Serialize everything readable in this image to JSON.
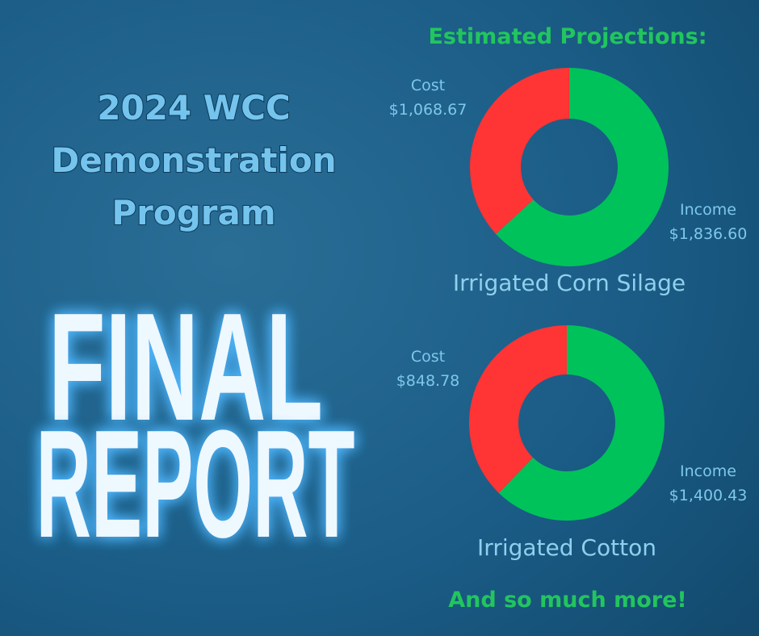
{
  "program_lines": [
    "2024 WCC",
    "Demonstration",
    "Program"
  ],
  "report_lines": [
    "FINAL",
    "REPORT"
  ],
  "heading": "Estimated Projections:",
  "footer": "And so much more!",
  "chart_data": [
    {
      "type": "pie",
      "donut": true,
      "title": "Irrigated Corn Silage",
      "categories": [
        "Cost",
        "Income"
      ],
      "values": [
        1068.67,
        1836.6
      ],
      "value_labels": [
        "$1,068.67",
        "$1,836.60"
      ],
      "colors": [
        "#ff3434",
        "#00c25a"
      ]
    },
    {
      "type": "pie",
      "donut": true,
      "title": "Irrigated Cotton",
      "categories": [
        "Cost",
        "Income"
      ],
      "values": [
        848.78,
        1400.43
      ],
      "value_labels": [
        "$848.78",
        "$1,400.43"
      ],
      "colors": [
        "#ff3434",
        "#00c25a"
      ]
    }
  ]
}
